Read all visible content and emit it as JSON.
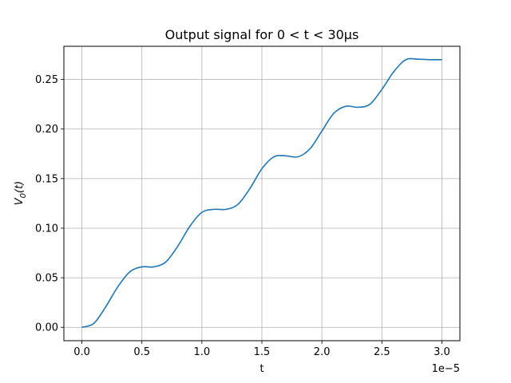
{
  "chart_data": {
    "type": "line",
    "title": "Output signal for 0 < t < 30μs",
    "xlabel": "t",
    "ylabel": "V0(t)",
    "x_offset_text": "1e−5",
    "xlim": [
      -0.15,
      3.15
    ],
    "ylim": [
      -0.0135,
      0.2835
    ],
    "x_ticks": [
      0.0,
      0.5,
      1.0,
      1.5,
      2.0,
      2.5,
      3.0
    ],
    "x_tick_labels": [
      "0.0",
      "0.5",
      "1.0",
      "1.5",
      "2.0",
      "2.5",
      "3.0"
    ],
    "y_ticks": [
      0.0,
      0.05,
      0.1,
      0.15,
      0.2,
      0.25
    ],
    "y_tick_labels": [
      "0.00",
      "0.05",
      "0.10",
      "0.15",
      "0.20",
      "0.25"
    ],
    "grid": true,
    "series": [
      {
        "color": "#1f77b4",
        "x": [
          0.0,
          0.1,
          0.2,
          0.3,
          0.4,
          0.5,
          0.6,
          0.7,
          0.8,
          0.9,
          1.0,
          1.1,
          1.2,
          1.3,
          1.4,
          1.5,
          1.6,
          1.7,
          1.8,
          1.9,
          2.0,
          2.1,
          2.2,
          2.3,
          2.4,
          2.5,
          2.6,
          2.7,
          2.8,
          2.9,
          3.0
        ],
        "y": [
          0.0,
          0.004,
          0.021,
          0.041,
          0.056,
          0.061,
          0.061,
          0.066,
          0.082,
          0.102,
          0.116,
          0.119,
          0.119,
          0.124,
          0.14,
          0.16,
          0.172,
          0.173,
          0.172,
          0.18,
          0.198,
          0.216,
          0.223,
          0.222,
          0.225,
          0.24,
          0.258,
          0.27,
          0.2705,
          0.27,
          0.27
        ]
      }
    ]
  }
}
